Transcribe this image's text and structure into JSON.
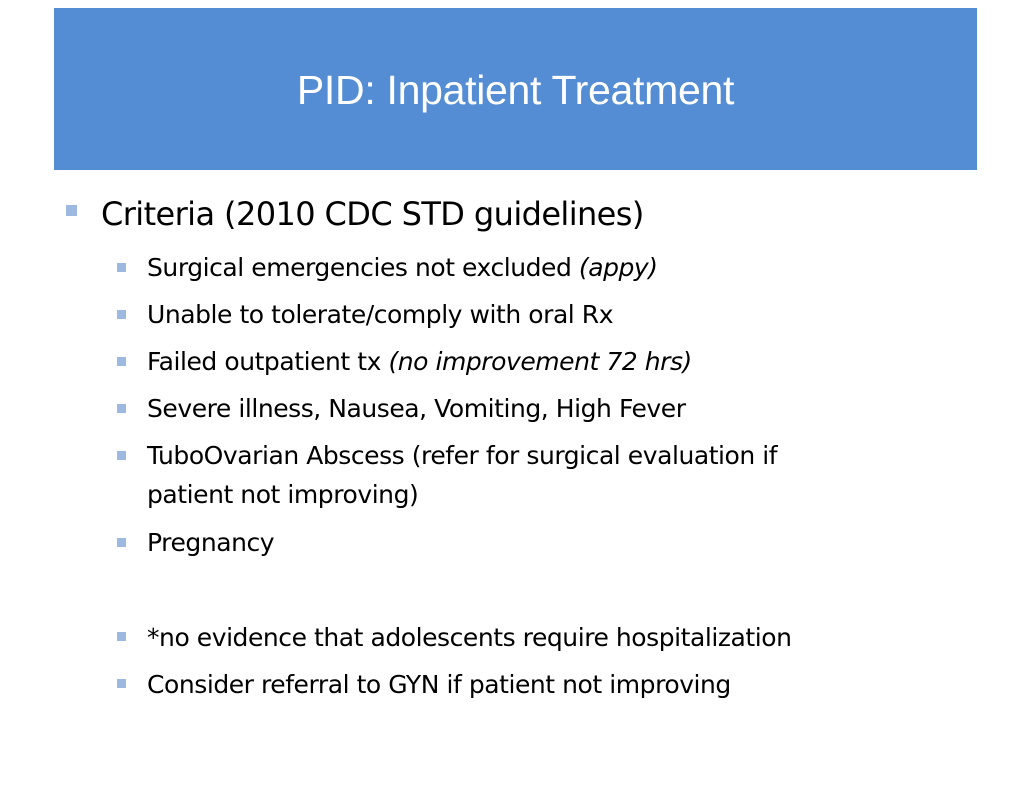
{
  "slide": {
    "title": "PID: Inpatient Treatment",
    "colors": {
      "title_background": "#548DD4",
      "title_text": "#FFFFFF",
      "bullet": "#9DB9E0",
      "body_text": "#000000"
    },
    "level1": {
      "text": "Criteria (2010 CDC STD guidelines)"
    },
    "items": [
      {
        "text": "Surgical emergencies not excluded ",
        "italic": "(appy)"
      },
      {
        "text": "Unable to tolerate/comply with oral Rx"
      },
      {
        "text": "Failed outpatient tx ",
        "italic": "(no improvement 72 hrs)"
      },
      {
        "text": "Severe illness, Nausea, Vomiting, High Fever"
      },
      {
        "line1": "TuboOvarian Abscess (refer for surgical evaluation if",
        "line2": "patient not improving)"
      },
      {
        "text": "Pregnancy"
      },
      {
        "text": "*no evidence that adolescents require hospitalization"
      },
      {
        "text": "Consider referral to GYN if patient not improving"
      }
    ]
  }
}
